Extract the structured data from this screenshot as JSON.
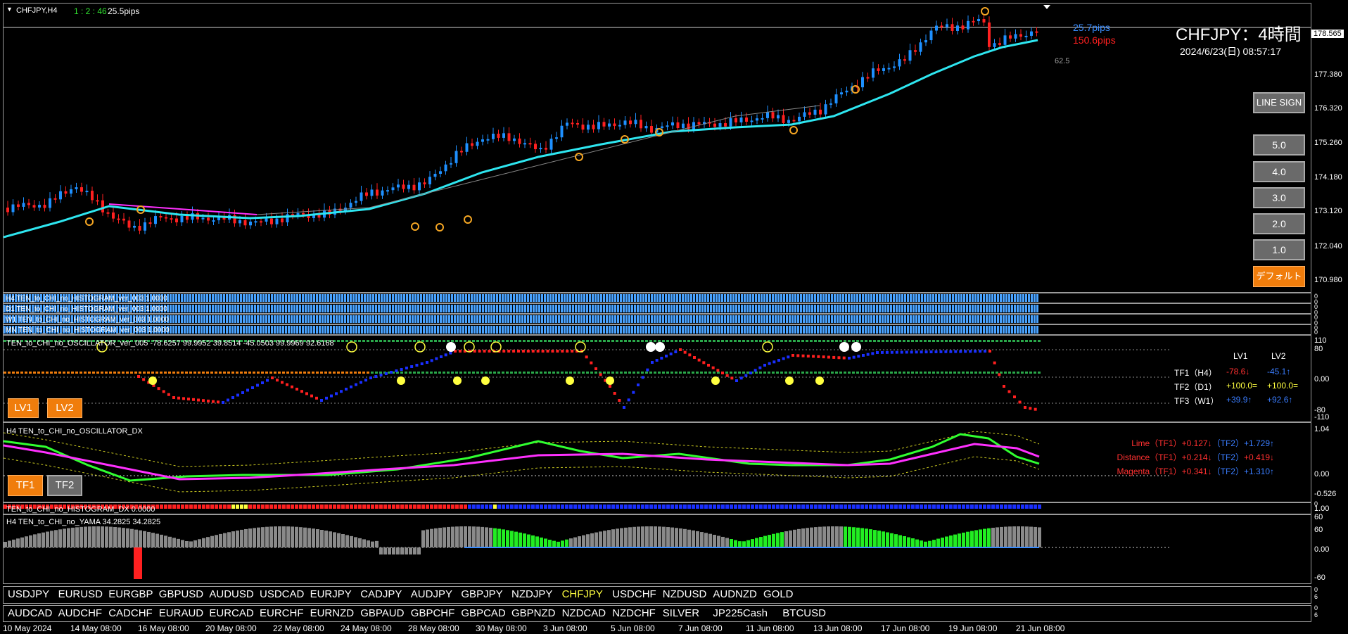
{
  "chart": {
    "symbol_tf": "CHFJPY,H4",
    "ratio": "1 : 2 : 46",
    "pips": "25.5pips",
    "pips_blue": "25.7pips",
    "pips_red": "150.6pips",
    "title": "CHFJPY：4時間",
    "datetime": "2024/6/23(日) 08:57:17",
    "current_price": "178.565",
    "label_62": "62.5",
    "price_ticks": [
      "177.380",
      "176.320",
      "175.260",
      "174.180",
      "173.120",
      "172.040",
      "170.980"
    ]
  },
  "buttons": {
    "line_sign": "LINE SIGN",
    "levels": [
      "5.0",
      "4.0",
      "3.0",
      "2.0",
      "1.0"
    ],
    "default": "デフォルト",
    "lv1": "LV1",
    "lv2": "LV2",
    "tf1": "TF1",
    "tf2": "TF2"
  },
  "histos": {
    "labels": [
      "H4 TEN_to_CHI_no_HISTOGRAM_ver_003 1.0000",
      "D1 TEN_to_CHI_no_HISTOGRAM_ver_003 1.0000",
      "W1 TEN_to_CHI_no_HISTOGRAM_ver_003 1.0000",
      "MN TEN_to_CHI_no_HISTOGRAM_ver_003 1.0000"
    ],
    "axis": [
      "0",
      "0",
      "0",
      "0",
      "0",
      "0",
      "0",
      "0"
    ]
  },
  "osc": {
    "label": "TEN_to_CHI_no_OSCILLATOR_ver_005 -78.6257 99.9952 39.8514 -45.0503 99.9969 92.6168",
    "axis": [
      "110",
      "80",
      "0.00",
      "-80",
      "-110"
    ],
    "lv_headers": [
      "LV1",
      "LV2"
    ],
    "rows": [
      {
        "name": "TF1（H4）",
        "v1": "-78.6↓",
        "v2": "-45.1↑",
        "c1": "#ff3030",
        "c2": "#3a7dff"
      },
      {
        "name": "TF2（D1）",
        "v1": "+100.0=",
        "v2": "+100.0=",
        "c1": "#ffff40",
        "c2": "#ffff40"
      },
      {
        "name": "TF3（W1）",
        "v1": "+39.9↑",
        "v2": "+92.6↑",
        "c1": "#3a7dff",
        "c2": "#3a7dff"
      }
    ]
  },
  "dx": {
    "label": "H4 TEN_to_CHI_no_OSCILLATOR_DX",
    "axis": [
      "1.04",
      "0.00",
      "-0.526"
    ],
    "rows": [
      {
        "name": "Lime（TF1）",
        "v1": "+0.127↓",
        "tf2": "（TF2）",
        "v2": "+1.729↑",
        "c1": "#ff3030",
        "c2": "#3a7dff"
      },
      {
        "name": "Distance（TF1）",
        "v1": "+0.214↓",
        "tf2": "（TF2）",
        "v2": "+0.419↓",
        "c1": "#ff3030",
        "c2": "#ff3030"
      },
      {
        "name": "Magenta（TF1）",
        "v1": "+0.341↓",
        "tf2": "（TF2）",
        "v2": "+1.310↑",
        "c1": "#ff3030",
        "c2": "#3a7dff"
      }
    ]
  },
  "hdx": {
    "label": "TEN_to_CHI_no_HISTOGRAM_DX 0.0000",
    "axis": [
      "0",
      "1.00"
    ]
  },
  "yama": {
    "label": "H4  TEN_to_CHI_no_YAMA  34.2825 34.2825",
    "axis": [
      "60",
      "60",
      "0.00",
      "-60"
    ]
  },
  "symbols_row1": [
    "USDJPY",
    "EURUSD",
    "EURGBP",
    "GBPUSD",
    "AUDUSD",
    "USDCAD",
    "EURJPY",
    "CADJPY",
    "AUDJPY",
    "GBPJPY",
    "NZDJPY",
    "CHFJPY",
    "USDCHF",
    "NZDUSD",
    "AUDNZD",
    "GOLD"
  ],
  "symbols_row2": [
    "AUDCAD",
    "AUDCHF",
    "CADCHF",
    "EURAUD",
    "EURCAD",
    "EURCHF",
    "EURNZD",
    "GBPAUD",
    "GBPCHF",
    "GBPCAD",
    "GBPNZD",
    "NZDCAD",
    "NZDCHF",
    "SILVER",
    "JP225Cash",
    "BTCUSD"
  ],
  "active_symbol": "CHFJPY",
  "symbol_axis": [
    "0",
    "6",
    "0",
    "6"
  ],
  "time_labels": [
    "10 May 2024",
    "14 May 08:00",
    "16 May 08:00",
    "20 May 08:00",
    "22 May 08:00",
    "24 May 08:00",
    "28 May 08:00",
    "30 May 08:00",
    "3 Jun 08:00",
    "5 Jun 08:00",
    "7 Jun 08:00",
    "11 Jun 08:00",
    "13 Jun 08:00",
    "17 Jun 08:00",
    "19 Jun 08:00",
    "21 Jun 08:00"
  ],
  "colors": {
    "up": "#1e90ff",
    "down": "#ff2020",
    "ma": "#2ee6f0",
    "active_symbol": "#ffff40",
    "lime": "#30ff30",
    "magenta": "#ff30ff"
  }
}
